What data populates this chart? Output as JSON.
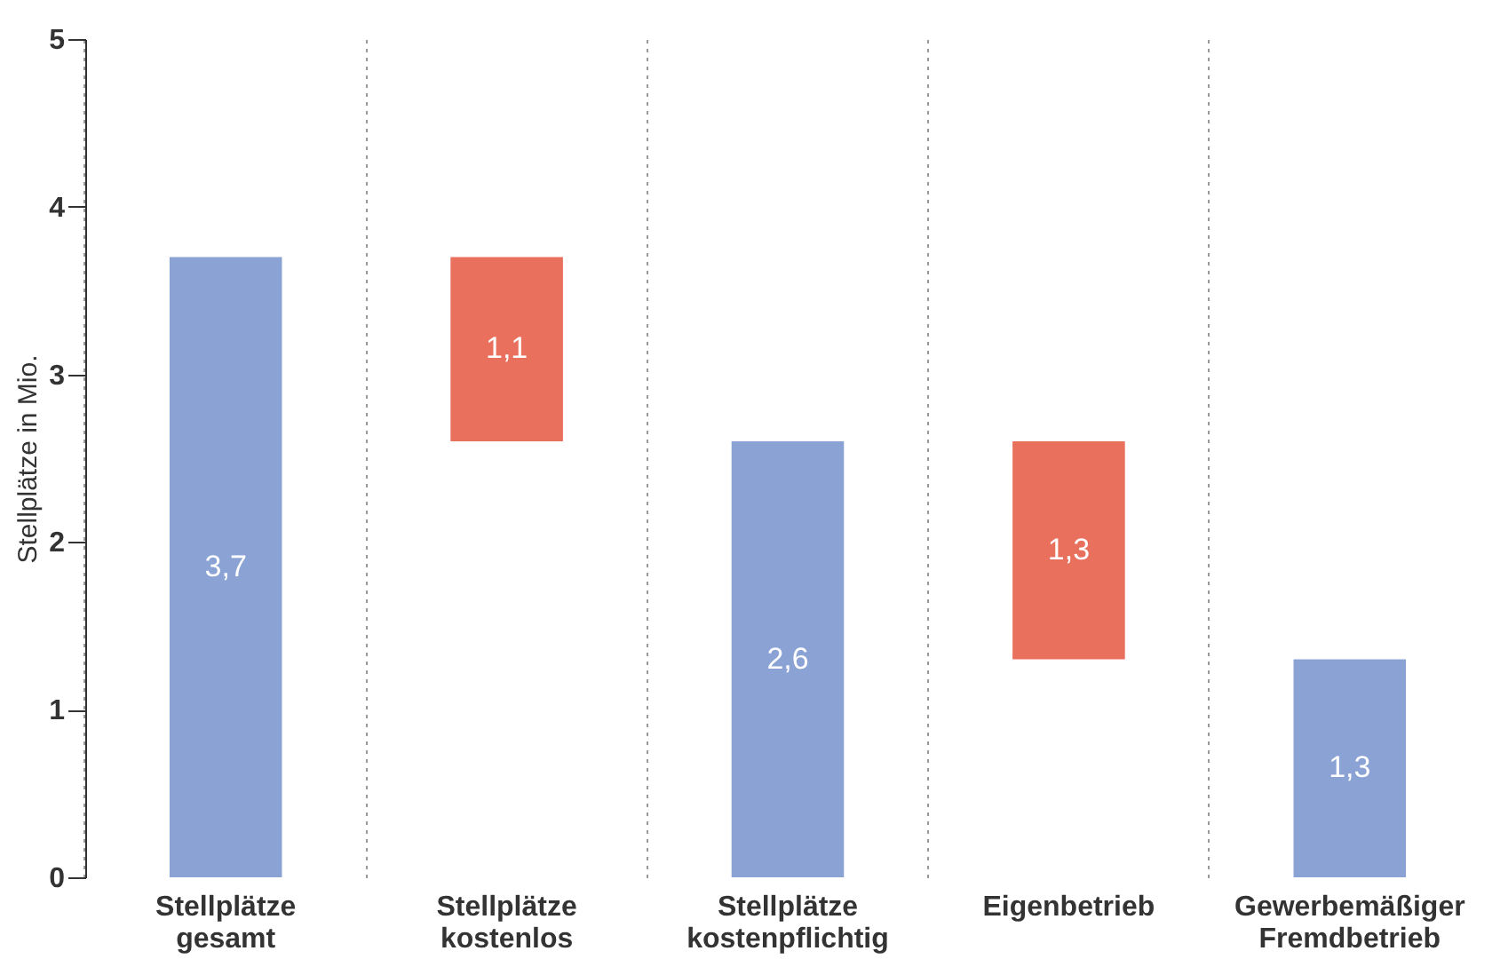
{
  "chart_data": {
    "type": "bar",
    "ylabel": "Stellplätze in Mio.",
    "categories": [
      "Stellplätze gesamt",
      "Stellplätze kostenlos",
      "Stellplätze kostenpflichtig",
      "Eigenbetrieb",
      "Gewerbemäßiger Fremdbetrieb"
    ],
    "values": [
      3.7,
      1.1,
      2.6,
      1.3,
      1.3
    ],
    "base": [
      0,
      2.6,
      0,
      1.3,
      0
    ],
    "colors": [
      "#8ba3d4",
      "#e8705c",
      "#8ba3d4",
      "#e8705c",
      "#8ba3d4"
    ],
    "value_labels": [
      "3,7",
      "1,1",
      "2,6",
      "1,3",
      "1,3"
    ],
    "ylim": [
      0,
      5
    ],
    "yticks": [
      0,
      1,
      2,
      3,
      4,
      5
    ],
    "grid": "x"
  }
}
